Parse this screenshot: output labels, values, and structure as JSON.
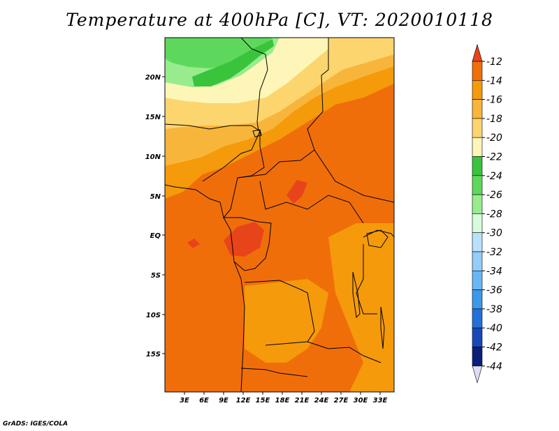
{
  "title": "Temperature at 400hPa [C], VT: 2020010118",
  "credit": "GrADS: IGES/COLA",
  "map": {
    "lat_labels": [
      "20N",
      "15N",
      "10N",
      "5N",
      "EQ",
      "5S",
      "10S",
      "15S"
    ],
    "lon_labels": [
      "3E",
      "6E",
      "9E",
      "12E",
      "15E",
      "18E",
      "21E",
      "24E",
      "27E",
      "30E",
      "33E"
    ]
  },
  "colorbar": {
    "levels": [
      "-12",
      "-14",
      "-16",
      "-18",
      "-20",
      "-22",
      "-24",
      "-26",
      "-28",
      "-30",
      "-32",
      "-34",
      "-36",
      "-38",
      "-40",
      "-42",
      "-44"
    ],
    "colors": [
      "#e8441a",
      "#f06e0a",
      "#f59a0a",
      "#f8b53c",
      "#fcd56e",
      "#fef6b8",
      "#39c43c",
      "#5ed85c",
      "#98ec8e",
      "#d8fbdc",
      "#b8e2fb",
      "#93cdf8",
      "#6ab6f3",
      "#3b98eb",
      "#2470d8",
      "#1648b8",
      "#0a1e7a",
      "#0b0b60"
    ],
    "top_arrow_color": "#e8441a",
    "bottom_arrow_color": "#dcdcf5"
  }
}
